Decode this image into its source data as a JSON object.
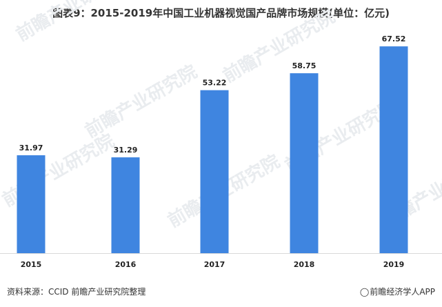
{
  "chart_data": {
    "type": "bar",
    "title": "图表9：2015-2019年中国工业机器视觉国产品牌市场规模(单位：亿元)",
    "categories": [
      "2015",
      "2016",
      "2017",
      "2018",
      "2019"
    ],
    "values": [
      31.97,
      31.29,
      53.22,
      58.75,
      67.52
    ],
    "xlabel": "",
    "ylabel": "",
    "ylim": [
      0,
      75
    ],
    "grid": false,
    "legend": "none",
    "bar_color": "#3f85e0"
  },
  "footer": {
    "source": "资料来源：CCID 前瞻产业研究院整理",
    "brand": "前瞻经济学人APP",
    "brand_icon": "weibo-icon"
  },
  "watermark": {
    "text": "前瞻产业研究院"
  }
}
